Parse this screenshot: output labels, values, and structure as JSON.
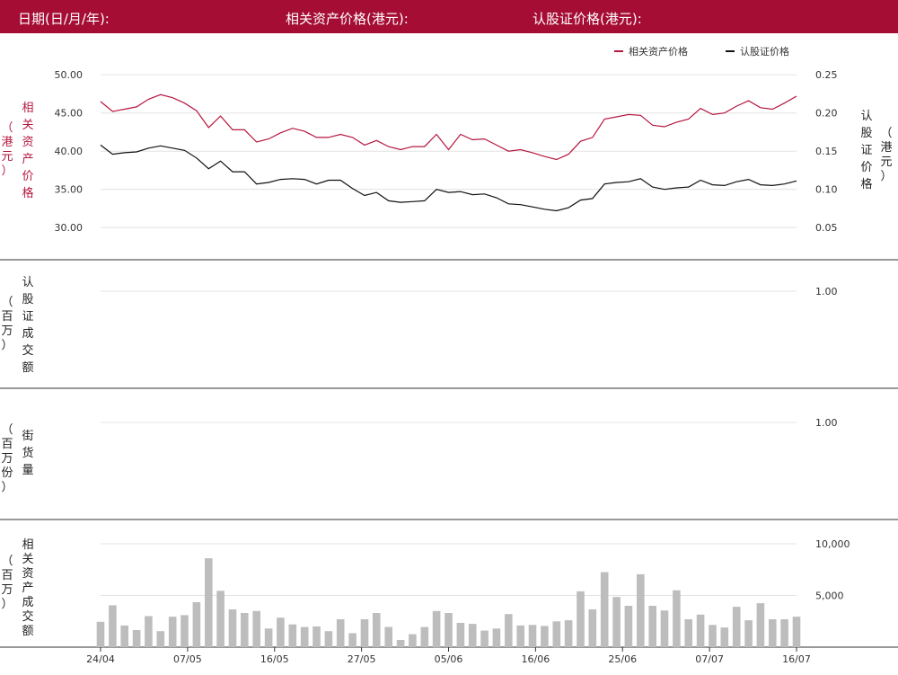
{
  "header": {
    "date_label": "日期(日/月/年):",
    "asset_price_label": "相关资产价格(港元):",
    "warrant_price_label": "认股证价格(港元):"
  },
  "colors": {
    "header_bg": "#a50d34",
    "asset_line": "#b5173f",
    "warrant_line": "#111111",
    "bars": "#bdbdbd",
    "grid": "#e3e3e3",
    "divider": "#333333"
  },
  "chart_data": [
    {
      "type": "line",
      "legend": [
        "相关资产价格",
        "认股证价格"
      ],
      "legend_placement": "top-right",
      "left_axis": {
        "label": "（港元）相关资产价格",
        "label_chars": [
          "相",
          "关",
          "资",
          "产",
          "价",
          "格"
        ],
        "unit_chars": [
          "（",
          "港",
          "元",
          "）"
        ],
        "ticks": [
          "50.00",
          "45.00",
          "40.00",
          "35.00",
          "30.00"
        ],
        "tick_values": [
          50,
          45,
          40,
          35,
          30
        ],
        "range": [
          27.9,
          52.5
        ]
      },
      "right_axis": {
        "label": "认股证价格（港元）",
        "label_chars": [
          "认",
          "股",
          "证",
          "价",
          "格"
        ],
        "unit_chars": [
          "（",
          "港",
          "元",
          "）"
        ],
        "ticks": [
          "0.25",
          "0.20",
          "0.15",
          "0.10",
          "0.05"
        ],
        "tick_values": [
          0.25,
          0.2,
          0.15,
          0.1,
          0.05
        ],
        "range": [
          0.029,
          0.275
        ]
      },
      "series": [
        {
          "name": "相关资产价格",
          "axis": "left",
          "values": [
            46.5,
            45.2,
            45.5,
            45.8,
            46.8,
            47.4,
            47.0,
            46.3,
            45.3,
            43.1,
            44.6,
            42.8,
            42.8,
            41.2,
            41.6,
            42.4,
            43.0,
            42.6,
            41.8,
            41.8,
            42.2,
            41.8,
            40.8,
            41.4,
            40.6,
            40.2,
            40.6,
            40.6,
            42.2,
            40.2,
            42.2,
            41.5,
            41.6,
            40.8,
            40.0,
            40.2,
            39.8,
            39.3,
            38.9,
            39.6,
            41.3,
            41.8,
            44.2,
            44.5,
            44.8,
            44.7,
            43.4,
            43.2,
            43.8,
            44.2,
            45.6,
            44.8,
            45.0,
            45.9,
            46.6,
            45.7,
            45.5,
            46.3,
            47.2
          ]
        },
        {
          "name": "认股证价格",
          "axis": "right",
          "values": [
            0.158,
            0.146,
            0.148,
            0.149,
            0.154,
            0.157,
            0.154,
            0.151,
            0.141,
            0.127,
            0.137,
            0.123,
            0.123,
            0.107,
            0.109,
            0.113,
            0.114,
            0.113,
            0.107,
            0.112,
            0.112,
            0.101,
            0.092,
            0.096,
            0.085,
            0.083,
            0.084,
            0.085,
            0.1,
            0.096,
            0.097,
            0.093,
            0.094,
            0.089,
            0.081,
            0.08,
            0.077,
            0.074,
            0.072,
            0.076,
            0.086,
            0.088,
            0.107,
            0.109,
            0.11,
            0.114,
            0.103,
            0.1,
            0.102,
            0.103,
            0.112,
            0.106,
            0.105,
            0.11,
            0.113,
            0.106,
            0.105,
            0.107,
            0.111
          ]
        }
      ]
    },
    {
      "type": "bar",
      "left_axis": {
        "label": "认股证成交额（百万）",
        "label_chars": [
          "认",
          "股",
          "证",
          "成",
          "交",
          "额"
        ],
        "unit_chars": [
          "（",
          "百",
          "万",
          "）"
        ]
      },
      "right_axis": {
        "ticks": [
          "1.00"
        ],
        "tick_values": [
          1.0
        ],
        "range": [
          0,
          1.5
        ]
      },
      "values": []
    },
    {
      "type": "bar",
      "left_axis": {
        "label": "街货量（百万份）",
        "label_chars": [
          "街",
          "货",
          "量"
        ],
        "unit_chars": [
          "（",
          "百",
          "万",
          "份",
          "）"
        ]
      },
      "right_axis": {
        "ticks": [
          "1.00"
        ],
        "tick_values": [
          1.0
        ],
        "range": [
          0,
          1.5
        ]
      },
      "values": []
    },
    {
      "type": "bar",
      "left_axis": {
        "label": "相关资产成交额（百万）",
        "label_chars": [
          "相",
          "关",
          "资",
          "产",
          "成",
          "交",
          "额"
        ],
        "unit_chars": [
          "（",
          "百",
          "万",
          "）"
        ]
      },
      "right_axis": {
        "ticks": [
          "10,000",
          "5,000"
        ],
        "tick_values": [
          10000,
          5000
        ],
        "range": [
          0,
          12000
        ]
      },
      "values": [
        2450,
        4050,
        2100,
        1650,
        3000,
        1550,
        2950,
        3100,
        4350,
        8600,
        5450,
        3650,
        3300,
        3500,
        1800,
        2850,
        2200,
        1950,
        2000,
        1550,
        2700,
        1350,
        2700,
        3300,
        1950,
        700,
        1250,
        1950,
        3500,
        3300,
        2350,
        2250,
        1600,
        1800,
        3200,
        2100,
        2150,
        2050,
        2500,
        2600,
        5400,
        3650,
        7250,
        4850,
        4000,
        7050,
        4000,
        3550,
        5500,
        2700,
        3150,
        2150,
        1900,
        3900,
        2600,
        4250,
        2700,
        2700,
        2950
      ]
    }
  ],
  "x_axis": {
    "tick_labels": [
      "24/04",
      "07/05",
      "16/05",
      "27/05",
      "05/06",
      "16/06",
      "25/06",
      "07/07",
      "16/07"
    ],
    "tick_indices": [
      0,
      8,
      16,
      24,
      32,
      40,
      48,
      56,
      64
    ],
    "num_points": 59
  }
}
